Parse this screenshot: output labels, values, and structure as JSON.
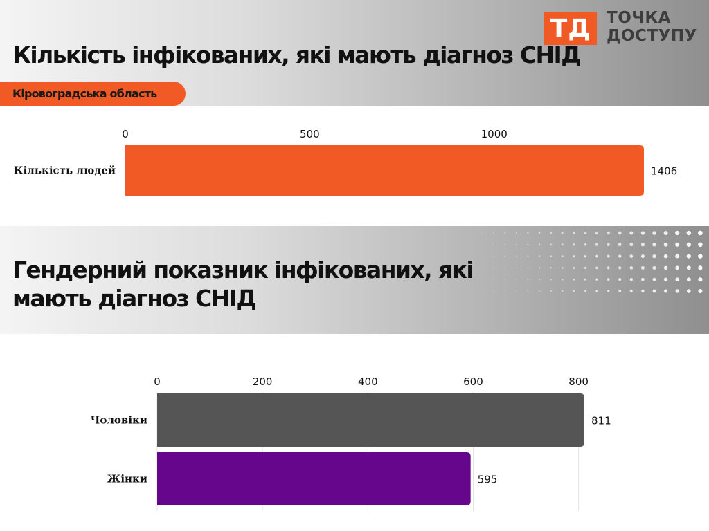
{
  "header": {
    "title": "Кількість інфікованих, які  мають діагноз СНІД",
    "region": "Кіровоградська область"
  },
  "logo": {
    "mark": "ТД",
    "line1": "ТОЧКА",
    "line2": "ДОСТУПУ"
  },
  "section2": {
    "title": "Гендерний показник інфікованих, які мають діагноз СНІД"
  },
  "chart_data": [
    {
      "type": "bar",
      "orientation": "horizontal",
      "categories": [
        "Кількість людей"
      ],
      "values": [
        1406
      ],
      "xlim": [
        0,
        1406
      ],
      "xticks": [
        0,
        500,
        1000
      ],
      "axis_position": "top",
      "grid": false,
      "colors": [
        "#f15a24"
      ],
      "value_labels": [
        "1406"
      ]
    },
    {
      "type": "bar",
      "orientation": "horizontal",
      "categories": [
        "Чоловіки",
        "Жінки"
      ],
      "values": [
        811,
        595
      ],
      "xlim": [
        0,
        811
      ],
      "xticks": [
        0,
        200,
        400,
        600,
        800
      ],
      "axis_position": "top",
      "grid": true,
      "colors": [
        "#555555",
        "#66068c"
      ],
      "value_labels": [
        "811",
        "595"
      ]
    }
  ]
}
